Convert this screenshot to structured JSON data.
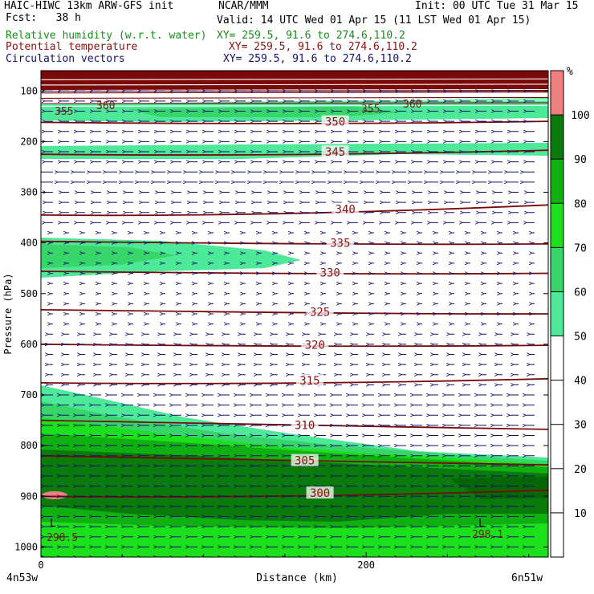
{
  "header": {
    "model": "HAIC-HIWC 13km ARW-GFS init",
    "org": "NCAR/MMM",
    "init": "Init: 00 UTC Tue 31 Mar 15",
    "fcst": "Fcst:   38 h",
    "valid": "Valid: 14 UTC Wed 01 Apr 15 (11 LST Wed 01 Apr 15)",
    "fields": [
      {
        "label": "Relative humidity (w.r.t. water)",
        "xy": "XY= 259.5, 91.6 to 274.6,110.2",
        "color": "#1a8c1a"
      },
      {
        "label": "Potential temperature",
        "xy": "XY= 259.5, 91.6 to 274.6,110.2",
        "color": "#8b1010"
      },
      {
        "label": "Circulation vectors",
        "xy": "XY= 259.5, 91.6 to 274.6,110.2",
        "color": "#10106e"
      }
    ]
  },
  "chart_data": {
    "type": "heatmap",
    "title": "Relative humidity (w.r.t. water), Potential temperature, Circulation vectors",
    "xlabel": "Distance (km)",
    "ylabel": "Pressure (hPa)",
    "x_ticks": [
      0,
      200
    ],
    "x_end_labels": {
      "left": "4n53w",
      "right": "6n51w"
    },
    "x_range": [
      0,
      312
    ],
    "y_ticks": [
      100,
      200,
      300,
      400,
      500,
      600,
      700,
      800,
      900,
      1000
    ],
    "y_range_hpa": [
      1020,
      60
    ],
    "colorbar": {
      "unit": "%",
      "ticks": [
        10,
        20,
        30,
        40,
        50,
        60,
        70,
        80,
        90,
        100
      ],
      "bands": [
        {
          "from": 0,
          "to": 50,
          "color": "#ffffff"
        },
        {
          "from": 50,
          "to": 60,
          "color": "#4ee899"
        },
        {
          "from": 60,
          "to": 70,
          "color": "#38d66a"
        },
        {
          "from": 70,
          "to": 80,
          "color": "#1ce01c"
        },
        {
          "from": 80,
          "to": 90,
          "color": "#10b010"
        },
        {
          "from": 90,
          "to": 100,
          "color": "#0a7a0a"
        },
        {
          "from": 100,
          "to": 110,
          "color": "#f08080"
        }
      ]
    },
    "theta_contours": [
      {
        "label": "300",
        "p_left": 900,
        "p_right": 888
      },
      {
        "label": "305",
        "p_left": 820,
        "p_right": 838
      },
      {
        "label": "310",
        "p_left": 750,
        "p_right": 768
      },
      {
        "label": "315",
        "p_left": 676,
        "p_right": 668
      },
      {
        "label": "320",
        "p_left": 600,
        "p_right": 602
      },
      {
        "label": "325",
        "p_left": 532,
        "p_right": 540
      },
      {
        "label": "330",
        "p_left": 456,
        "p_right": 460
      },
      {
        "label": "335",
        "p_left": 397,
        "p_right": 402
      },
      {
        "label": "340",
        "p_left": 345,
        "p_right": 325
      },
      {
        "label": "345",
        "p_left": 225,
        "p_right": 217
      },
      {
        "label": "350",
        "p_left": 162,
        "p_right": 160
      }
    ],
    "upper_labels": [
      "355",
      "360"
    ],
    "minima": [
      {
        "label": "L",
        "value": "298.5",
        "position": "left"
      },
      {
        "label": "L",
        "value": "298.1",
        "position": "right"
      }
    ]
  }
}
